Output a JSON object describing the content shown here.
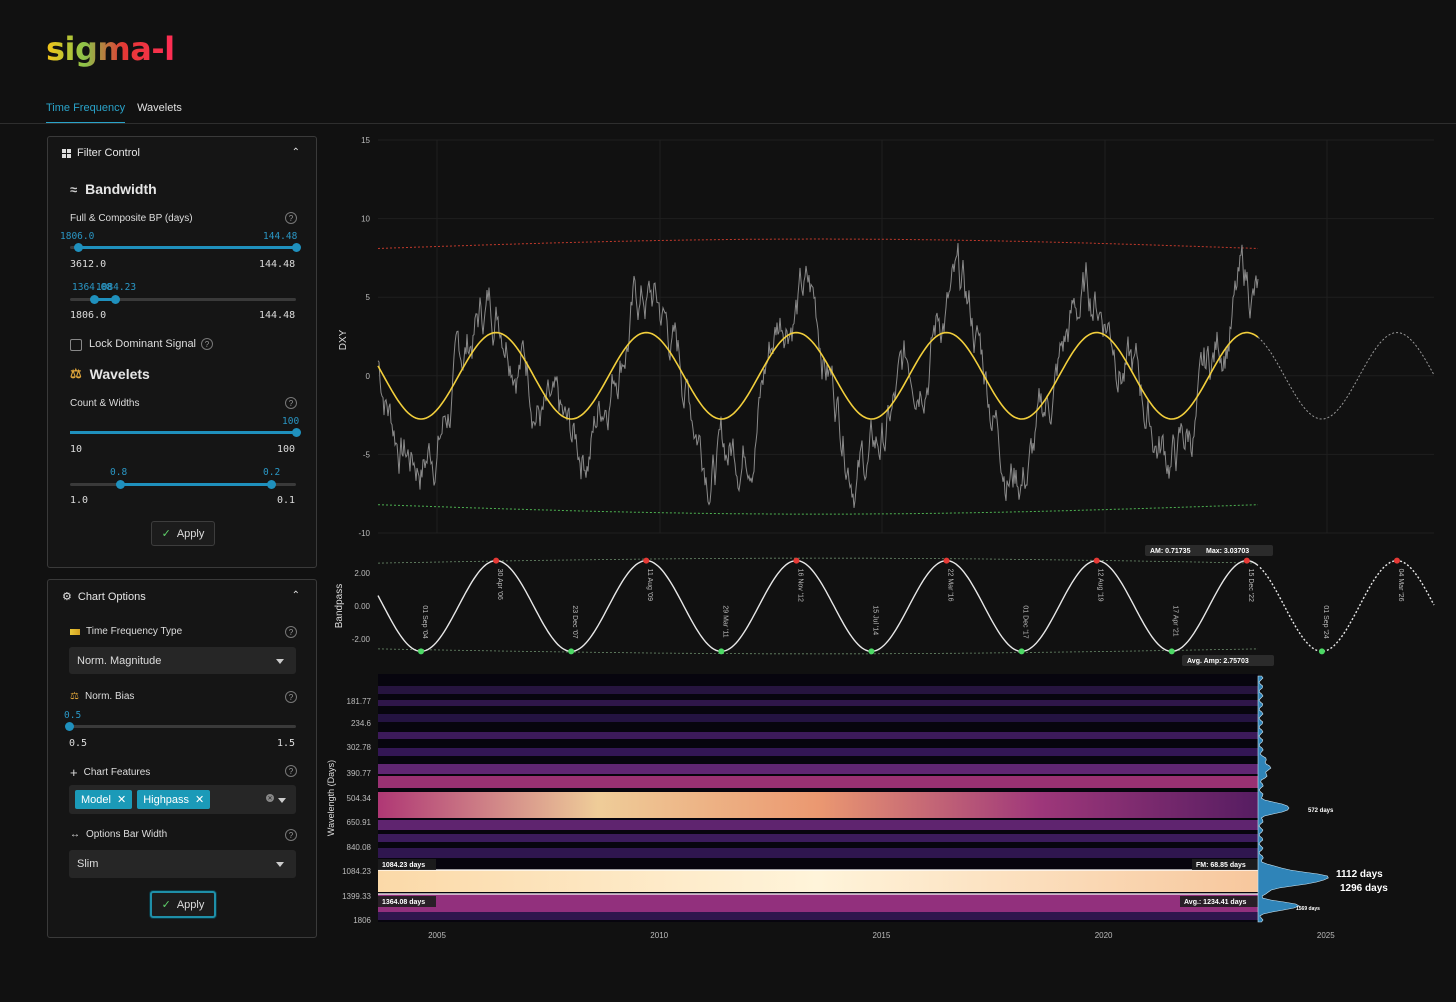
{
  "app": {
    "title": "sigma-l"
  },
  "tabs": [
    {
      "label": "Time Frequency"
    },
    {
      "label": "Wavelets"
    }
  ],
  "filter_control": {
    "title": "Filter Control",
    "bandwidth_title": "Bandwidth",
    "bp_label": "Full & Composite BP (days)",
    "slider1": {
      "left_value": "1806.0",
      "right_value": "144.48",
      "min_label": "3612.0",
      "max_label": "144.48"
    },
    "slider2": {
      "left_value": "1364.08",
      "right_value": "1084.23",
      "min_label": "1806.0",
      "max_label": "144.48"
    },
    "lock_label": "Lock Dominant Signal",
    "wavelets_title": "Wavelets",
    "count_label": "Count & Widths",
    "slider3": {
      "value": "100",
      "min_label": "10",
      "max_label": "100"
    },
    "slider4": {
      "left_value": "0.8",
      "right_value": "0.2",
      "min_label": "1.0",
      "max_label": "0.1"
    },
    "apply_label": "Apply"
  },
  "chart_options": {
    "title": "Chart Options",
    "tf_type_label": "Time Frequency Type",
    "tf_type_value": "Norm. Magnitude",
    "bias_label": "Norm. Bias",
    "bias_slider": {
      "value": "0.5",
      "min_label": "0.5",
      "max_label": "1.5"
    },
    "features_label": "Chart Features",
    "features": [
      {
        "label": "Model"
      },
      {
        "label": "Highpass"
      }
    ],
    "bar_width_label": "Options Bar Width",
    "bar_width_value": "Slim",
    "apply_label": "Apply"
  },
  "chart_data": [
    {
      "type": "line",
      "ylabel": "DXY",
      "yticks": [
        "15",
        "10",
        "5",
        "0",
        "-5",
        "-10"
      ],
      "ylim": [
        -10,
        15
      ],
      "series": [
        {
          "values_note": ""
        }
      ],
      "model_sine": {
        "period_days": 1234,
        "amplitude": 2.75
      }
    },
    {
      "type": "line",
      "ylabel": "Bandpass",
      "yticks": [
        "2.00",
        "0.00",
        "-2.00"
      ],
      "annotations": {
        "am": "AM: 0.71735",
        "max": "Max: 3.03703",
        "avg_amp": "Avg. Amp: 2.75703"
      },
      "peaks": [
        "30 Apr '06",
        "11 Aug '09",
        "16 Nov '12",
        "22 Mar '16",
        "12 Aug '19",
        "15 Dec '22",
        "04 Mar '26"
      ],
      "troughs": [
        "01 Sep '04",
        "23 Dec '07",
        "29 Mar '11",
        "15 Jul '14",
        "01 Dec '17",
        "17 Apr '21",
        "01 Sep '24"
      ]
    },
    {
      "type": "heatmap",
      "ylabel": "Wavelength (Days)",
      "yticks": [
        "181.77",
        "234.6",
        "302.78",
        "390.77",
        "504.34",
        "650.91",
        "840.08",
        "1084.23",
        "1399.33",
        "1806"
      ],
      "xticks": [
        "2005",
        "2010",
        "2015",
        "2020",
        "2025"
      ],
      "band_labels": {
        "upper": "1084.23 days",
        "lower": "1364.08 days",
        "fm": "FM: 68.85 days",
        "avg": "Avg.: 1234.41 days"
      },
      "spectrum_peaks": [
        {
          "label": "572 days",
          "size": "small"
        },
        {
          "label": "1112 days",
          "size": "large"
        },
        {
          "label": "1296 days",
          "size": "large"
        },
        {
          "label": "1569 days",
          "size": "small"
        }
      ]
    }
  ]
}
